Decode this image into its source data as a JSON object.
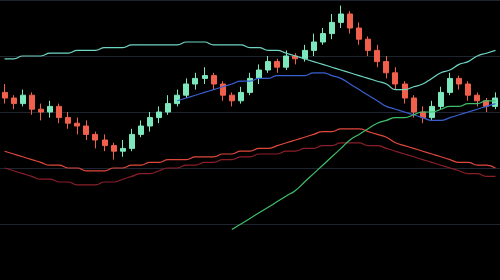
{
  "chart_data": {
    "type": "candlestick",
    "categories": [
      null,
      null,
      null,
      null,
      null,
      null,
      null,
      null,
      null,
      null,
      null,
      null,
      null,
      null,
      null,
      null,
      null,
      null,
      null,
      null,
      null,
      null,
      null,
      null,
      null,
      null,
      null,
      null,
      null,
      null,
      null,
      null,
      null,
      null,
      null,
      null,
      null,
      null,
      null,
      null,
      null,
      null,
      null,
      null,
      null,
      null,
      null,
      null,
      null,
      null,
      null,
      null,
      null,
      null,
      null
    ],
    "ylim": [
      0,
      100
    ],
    "yticks": [
      0,
      20,
      40,
      60,
      80,
      100
    ],
    "grid": true,
    "tick_labels": false,
    "series": [
      {
        "type": "candlestick",
        "values": [
          [
            67,
            65,
            63,
            70
          ],
          [
            65,
            63,
            61,
            66
          ],
          [
            63,
            66,
            62,
            68
          ],
          [
            66,
            61,
            59,
            67
          ],
          [
            61,
            60,
            57,
            63
          ],
          [
            60,
            62,
            58,
            64
          ],
          [
            62,
            58,
            56,
            63
          ],
          [
            58,
            56,
            54,
            60
          ],
          [
            56,
            55,
            52,
            58
          ],
          [
            55,
            52,
            50,
            57
          ],
          [
            52,
            50,
            47,
            53
          ],
          [
            50,
            48,
            46,
            52
          ],
          [
            48,
            46,
            43,
            49
          ],
          [
            46,
            47,
            44,
            50
          ],
          [
            47,
            52,
            46,
            54
          ],
          [
            52,
            55,
            51,
            57
          ],
          [
            55,
            58,
            53,
            60
          ],
          [
            58,
            60,
            56,
            62
          ],
          [
            60,
            63,
            59,
            66
          ],
          [
            63,
            66,
            62,
            68
          ],
          [
            66,
            70,
            65,
            72
          ],
          [
            70,
            72,
            68,
            74
          ],
          [
            72,
            73,
            70,
            76
          ],
          [
            73,
            70,
            68,
            74
          ],
          [
            70,
            66,
            64,
            71
          ],
          [
            66,
            64,
            62,
            67
          ],
          [
            64,
            67,
            63,
            69
          ],
          [
            67,
            72,
            66,
            74
          ],
          [
            72,
            75,
            70,
            77
          ],
          [
            75,
            78,
            74,
            80
          ],
          [
            78,
            76,
            74,
            79
          ],
          [
            76,
            80,
            75,
            82
          ],
          [
            80,
            79,
            77,
            81
          ],
          [
            79,
            82,
            78,
            84
          ],
          [
            82,
            85,
            80,
            88
          ],
          [
            85,
            88,
            84,
            90
          ],
          [
            88,
            92,
            86,
            95
          ],
          [
            92,
            95,
            90,
            98
          ],
          [
            95,
            90,
            88,
            96
          ],
          [
            90,
            86,
            84,
            92
          ],
          [
            86,
            82,
            80,
            87
          ],
          [
            82,
            78,
            76,
            84
          ],
          [
            78,
            74,
            72,
            80
          ],
          [
            74,
            70,
            68,
            76
          ],
          [
            70,
            65,
            63,
            71
          ],
          [
            65,
            60,
            58,
            66
          ],
          [
            60,
            58,
            56,
            62
          ],
          [
            58,
            62,
            57,
            64
          ],
          [
            62,
            67,
            61,
            69
          ],
          [
            67,
            72,
            66,
            74
          ],
          [
            72,
            70,
            68,
            73
          ],
          [
            70,
            66,
            64,
            71
          ],
          [
            66,
            64,
            62,
            67
          ],
          [
            64,
            62,
            60,
            65
          ],
          [
            62,
            65,
            61,
            67
          ]
        ]
      },
      {
        "type": "line",
        "color": "#6fd6c4",
        "values": [
          79,
          79,
          80,
          80,
          80,
          81,
          81,
          81,
          82,
          82,
          82,
          83,
          83,
          83,
          84,
          84,
          84,
          84,
          84,
          84,
          85,
          85,
          85,
          84,
          84,
          84,
          84,
          83,
          83,
          82,
          82,
          81,
          80,
          79,
          78,
          77,
          76,
          75,
          74,
          73,
          72,
          71,
          70,
          68,
          68,
          69,
          70,
          72,
          74,
          75,
          77,
          78,
          80,
          81,
          82
        ]
      },
      {
        "type": "line",
        "color": "#3a5fd0",
        "values": [
          null,
          null,
          null,
          null,
          null,
          null,
          null,
          null,
          null,
          null,
          null,
          null,
          null,
          null,
          null,
          null,
          null,
          null,
          null,
          64,
          65,
          66,
          67,
          68,
          69,
          70,
          71,
          71,
          72,
          72,
          73,
          73,
          73,
          73,
          74,
          74,
          73,
          72,
          70,
          68,
          66,
          64,
          62,
          61,
          60,
          59,
          58,
          57,
          57,
          58,
          59,
          60,
          61,
          62,
          63
        ]
      },
      {
        "type": "line",
        "color": "#e0483c",
        "values": [
          46,
          45,
          44,
          43,
          42,
          41,
          41,
          40,
          40,
          39,
          39,
          39,
          40,
          40,
          41,
          41,
          42,
          42,
          43,
          43,
          43,
          44,
          44,
          44,
          45,
          45,
          46,
          46,
          47,
          47,
          48,
          49,
          50,
          51,
          52,
          53,
          53,
          54,
          54,
          54,
          53,
          52,
          51,
          49,
          48,
          47,
          46,
          45,
          44,
          43,
          42,
          42,
          41,
          41,
          40
        ]
      },
      {
        "type": "line",
        "color": "#8a1f2a",
        "values": [
          40,
          39,
          38,
          37,
          36,
          36,
          35,
          35,
          34,
          34,
          34,
          35,
          35,
          36,
          37,
          38,
          38,
          39,
          40,
          40,
          41,
          41,
          42,
          42,
          43,
          43,
          44,
          44,
          45,
          45,
          45,
          46,
          46,
          47,
          47,
          48,
          48,
          49,
          49,
          49,
          48,
          48,
          47,
          46,
          45,
          44,
          43,
          42,
          41,
          40,
          39,
          38,
          38,
          37,
          37
        ]
      },
      {
        "type": "line",
        "color": "#3fbf6a",
        "values": [
          null,
          null,
          null,
          null,
          null,
          null,
          null,
          null,
          null,
          null,
          null,
          null,
          null,
          null,
          null,
          null,
          null,
          null,
          null,
          null,
          null,
          null,
          null,
          null,
          null,
          18,
          20,
          22,
          24,
          26,
          28,
          30,
          32,
          35,
          38,
          41,
          44,
          47,
          50,
          52,
          54,
          56,
          57,
          58,
          58,
          59,
          60,
          60,
          61,
          62,
          62,
          63,
          63,
          64,
          64
        ]
      }
    ]
  }
}
